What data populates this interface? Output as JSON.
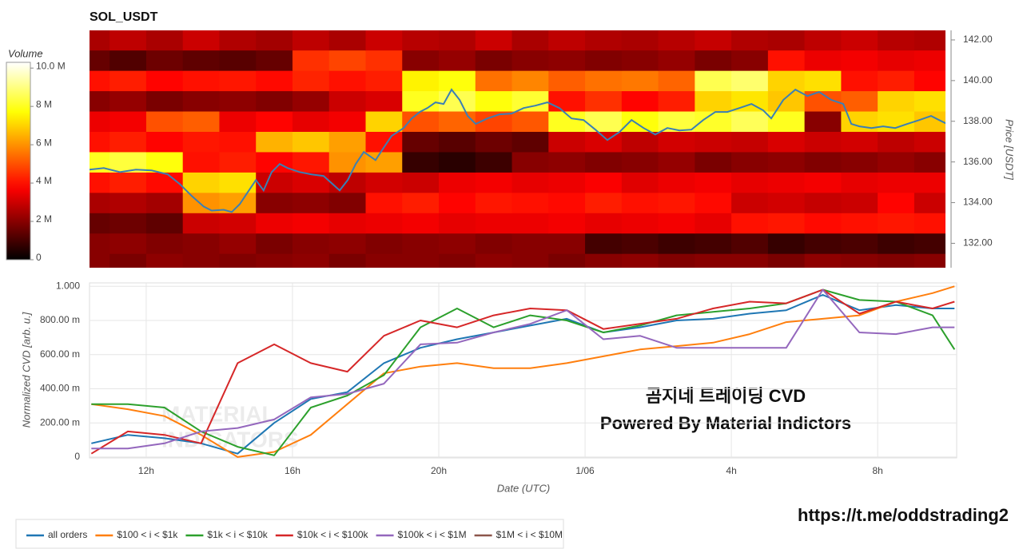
{
  "chart_data": [
    {
      "type": "heatmap",
      "title": "SOL_USDT",
      "colormap": "hot",
      "colorbar_title": "Volume",
      "zlim": [
        0,
        10.3
      ],
      "zticks": [
        0,
        {
          "value": 2,
          "label": "2 M"
        },
        {
          "value": 4,
          "label": "4 M"
        },
        {
          "value": 6,
          "label": "6 M"
        },
        {
          "value": 8,
          "label": "8 M"
        },
        {
          "value": 10,
          "label": "10.0 M"
        }
      ],
      "ylabel": "Price [USDT]",
      "ylim": [
        130.8,
        142.47
      ],
      "yticks": [
        {
          "value": 132,
          "label": "132.00"
        },
        {
          "value": 134,
          "label": "134.00"
        },
        {
          "value": 136,
          "label": "136.00"
        },
        {
          "value": 138,
          "label": "138.00"
        },
        {
          "value": 140,
          "label": "140.00"
        },
        {
          "value": 142,
          "label": "142.00"
        }
      ],
      "xlim": [
        10.45,
        34.16
      ],
      "x_bins": [
        10,
        11,
        12,
        13,
        14,
        15,
        16,
        17,
        18,
        19,
        20,
        21,
        22,
        23,
        24,
        25,
        26,
        27,
        28,
        29,
        30,
        31,
        32,
        33,
        34,
        35
      ],
      "y_bins": [
        130.5,
        131.5,
        132.5,
        133.5,
        134.5,
        135.5,
        136.5,
        137.5,
        138.5,
        139.5,
        140.5,
        141.5,
        142.5
      ],
      "z": [
        [
          2,
          1.8,
          2.1,
          2,
          1.9,
          2,
          2.1,
          1.8,
          2,
          2,
          1.9,
          2.1,
          2,
          1.8,
          2,
          2.1,
          1.9,
          2,
          2,
          1.8,
          2.1,
          2,
          1.9,
          2,
          2
        ],
        [
          2,
          2.1,
          1.9,
          2,
          2.2,
          1.8,
          2,
          2.1,
          1.9,
          2,
          2.1,
          1.9,
          2,
          2,
          1,
          1.1,
          0.9,
          1,
          1.2,
          0.8,
          1,
          1.1,
          0.9,
          1,
          1
        ],
        [
          1.5,
          1.6,
          1.4,
          3,
          3.1,
          3.5,
          3.6,
          3.4,
          3.5,
          3.6,
          3.4,
          3.5,
          3.5,
          3.6,
          3.4,
          3.5,
          3.6,
          3.4,
          4,
          4.1,
          3.9,
          4,
          4.1,
          4,
          4
        ],
        [
          2.5,
          2.6,
          2.4,
          6,
          6.2,
          2,
          2.1,
          1.9,
          4,
          4.2,
          3.8,
          4.1,
          4,
          3.9,
          4.2,
          4,
          4.1,
          3.9,
          3,
          3.1,
          2.9,
          3,
          3.8,
          3,
          3
        ],
        [
          4,
          4.2,
          3.9,
          7,
          7.2,
          3,
          3.2,
          2.8,
          3.1,
          3,
          3.5,
          3.6,
          3.4,
          3.5,
          3.7,
          3.3,
          3.5,
          3.6,
          3.4,
          3.5,
          3.6,
          3.4,
          3.5,
          3.5,
          3.5
        ],
        [
          8,
          8.3,
          7.8,
          4,
          4.2,
          3.8,
          4.1,
          6,
          6.2,
          0.8,
          0.6,
          0.9,
          2,
          2.1,
          1.9,
          2,
          2.2,
          1.8,
          2,
          2.1,
          1.9,
          2,
          2.2,
          2,
          2
        ],
        [
          4,
          4.2,
          3.8,
          4.1,
          4,
          6.5,
          6.8,
          6.2,
          4,
          1.5,
          1.3,
          1.6,
          1.4,
          3,
          3.2,
          2.8,
          3.1,
          3,
          2.9,
          3.2,
          3,
          3.1,
          2.8,
          3,
          3
        ],
        [
          3.5,
          3.6,
          5,
          5.2,
          3.5,
          3.8,
          3.4,
          3.6,
          7,
          5,
          5.3,
          4.8,
          5.1,
          8,
          8.5,
          7.8,
          8.3,
          8.1,
          8.6,
          8,
          2,
          7,
          7.2,
          6.8,
          7
        ],
        [
          2,
          2.2,
          1.8,
          2,
          2.1,
          1.9,
          2.2,
          3,
          3.2,
          8,
          8.5,
          7.8,
          8.2,
          4,
          4.5,
          3.8,
          4.2,
          7,
          7.3,
          6.8,
          5,
          5.2,
          7,
          7.2,
          6
        ],
        [
          4,
          4.2,
          3.8,
          4,
          4.1,
          3.9,
          4.3,
          4,
          4.2,
          7.5,
          7.8,
          5.5,
          5.8,
          5.2,
          5.5,
          5.6,
          5.3,
          8.5,
          8.8,
          7,
          7.2,
          4,
          4.2,
          3.8,
          4
        ],
        [
          1.5,
          1.2,
          1.6,
          1.4,
          1.3,
          1.5,
          4.5,
          4.8,
          4.5,
          2,
          2.2,
          1.8,
          2,
          2.1,
          1.9,
          2,
          2.2,
          1.8,
          2,
          4,
          3.5,
          3.6,
          3.4,
          3.5,
          3.5
        ],
        [
          2.5,
          2.8,
          2.5,
          3,
          2.6,
          2.4,
          2.8,
          2.5,
          3,
          2.7,
          2.6,
          3,
          2.5,
          2.8,
          2.6,
          2.5,
          2.7,
          2.9,
          2.6,
          2.5,
          2.8,
          3,
          2.7,
          2.6,
          2.6
        ]
      ],
      "price_line": {
        "color": "#3a7fb5",
        "x": [
          10.45,
          10.84,
          11.28,
          11.72,
          12.15,
          12.59,
          12.92,
          13.25,
          13.57,
          13.79,
          14.12,
          14.34,
          14.56,
          14.78,
          15.0,
          15.21,
          15.43,
          15.65,
          15.87,
          16.2,
          16.52,
          16.85,
          17.29,
          17.51,
          17.73,
          17.95,
          18.27,
          18.49,
          18.71,
          19.04,
          19.26,
          19.48,
          19.69,
          19.91,
          20.13,
          20.35,
          20.57,
          20.79,
          21.01,
          21.33,
          21.66,
          21.99,
          22.32,
          22.64,
          22.97,
          23.3,
          23.63,
          23.96,
          24.28,
          24.61,
          24.94,
          25.27,
          25.6,
          25.92,
          26.25,
          26.58,
          26.91,
          27.23,
          27.56,
          27.89,
          28.22,
          28.55,
          28.87,
          29.09,
          29.42,
          29.75,
          30.08,
          30.4,
          30.73,
          31.06,
          31.28,
          31.5,
          31.83,
          32.15,
          32.48,
          32.81,
          33.14,
          33.46,
          33.68,
          33.9,
          34.16
        ],
        "values": [
          135.62,
          135.7,
          135.5,
          135.62,
          135.58,
          135.39,
          134.91,
          134.32,
          133.81,
          133.61,
          133.65,
          133.54,
          133.93,
          134.52,
          135.11,
          134.6,
          135.5,
          135.9,
          135.7,
          135.5,
          135.39,
          135.31,
          134.6,
          135.11,
          135.9,
          136.49,
          136.09,
          136.69,
          137.28,
          137.67,
          138.14,
          138.46,
          138.65,
          138.93,
          138.85,
          139.56,
          139.05,
          138.26,
          137.87,
          138.14,
          138.34,
          138.38,
          138.65,
          138.77,
          138.93,
          138.65,
          138.14,
          138.06,
          137.59,
          137.08,
          137.47,
          138.06,
          137.67,
          137.35,
          137.67,
          137.55,
          137.59,
          138.06,
          138.46,
          138.46,
          138.65,
          138.85,
          138.54,
          138.14,
          139.05,
          139.56,
          139.24,
          139.44,
          139.05,
          138.85,
          137.87,
          137.75,
          137.67,
          137.75,
          137.67,
          137.87,
          138.06,
          138.26,
          138.06,
          137.87,
          137.98
        ]
      }
    },
    {
      "type": "line",
      "xlabel": "Date (UTC)",
      "ylabel": "Normalized CVD [arb. u.]",
      "grid": true,
      "xlim": [
        10.45,
        34.16
      ],
      "xticks": [
        {
          "value": 12,
          "label": "12h"
        },
        {
          "value": 16,
          "label": "16h"
        },
        {
          "value": 20,
          "label": "20h"
        },
        {
          "value": 24,
          "label": "1/06"
        },
        {
          "value": 28,
          "label": "4h"
        },
        {
          "value": 32,
          "label": "8h"
        }
      ],
      "ylim": [
        -0.005,
        1.02
      ],
      "yticks": [
        0,
        {
          "value": 0.2,
          "label": "200.00 m"
        },
        {
          "value": 0.4,
          "label": "400.00 m"
        },
        {
          "value": 0.6,
          "label": "600.00 m"
        },
        {
          "value": 0.8,
          "label": "800.00 m"
        },
        {
          "value": 1,
          "label": "1.000"
        }
      ],
      "x": [
        10.5,
        11.5,
        12.5,
        13.5,
        14.5,
        15.5,
        16.5,
        17.5,
        18.5,
        19.5,
        20.5,
        21.5,
        22.5,
        23.5,
        24.5,
        25.5,
        26.5,
        27.5,
        28.5,
        29.5,
        30.5,
        31.5,
        32.5,
        33.5,
        34.1
      ],
      "series": [
        {
          "name": "all orders",
          "color": "#1f77b4",
          "values": [
            0.08,
            0.13,
            0.11,
            0.08,
            0.02,
            0.2,
            0.34,
            0.38,
            0.55,
            0.64,
            0.69,
            0.73,
            0.77,
            0.81,
            0.73,
            0.76,
            0.8,
            0.81,
            0.84,
            0.86,
            0.95,
            0.86,
            0.89,
            0.87,
            0.87
          ]
        },
        {
          "name": "$100 < i < $1k",
          "color": "#ff7f0e",
          "values": [
            0.31,
            0.28,
            0.24,
            0.13,
            0,
            0.03,
            0.13,
            0.31,
            0.49,
            0.53,
            0.55,
            0.52,
            0.52,
            0.55,
            0.59,
            0.63,
            0.65,
            0.67,
            0.72,
            0.79,
            0.81,
            0.83,
            0.91,
            0.96,
            1.0
          ]
        },
        {
          "name": "$1k < i < $10k",
          "color": "#2ca02c",
          "values": [
            0.31,
            0.31,
            0.29,
            0.15,
            0.06,
            0.01,
            0.29,
            0.36,
            0.48,
            0.76,
            0.87,
            0.76,
            0.83,
            0.8,
            0.73,
            0.77,
            0.83,
            0.85,
            0.87,
            0.9,
            0.98,
            0.92,
            0.91,
            0.83,
            0.63
          ]
        },
        {
          "name": "$10k < i < $100k",
          "color": "#d62728",
          "values": [
            0.02,
            0.15,
            0.13,
            0.08,
            0.55,
            0.66,
            0.55,
            0.5,
            0.71,
            0.8,
            0.76,
            0.83,
            0.87,
            0.86,
            0.75,
            0.78,
            0.81,
            0.87,
            0.91,
            0.9,
            0.98,
            0.84,
            0.91,
            0.87,
            0.91
          ]
        },
        {
          "name": "$100k < i < $1M",
          "color": "#9467bd",
          "values": [
            0.05,
            0.05,
            0.08,
            0.15,
            0.17,
            0.22,
            0.35,
            0.37,
            0.43,
            0.66,
            0.67,
            0.73,
            0.78,
            0.86,
            0.69,
            0.71,
            0.64,
            0.64,
            0.64,
            0.64,
            0.98,
            0.73,
            0.72,
            0.76,
            0.76
          ]
        },
        {
          "name": "$1M < i < $10M",
          "color": "#8c564b",
          "values": [
            null,
            null,
            null,
            null,
            null,
            null,
            null,
            null,
            null,
            null,
            null,
            null,
            null,
            null,
            null,
            null,
            null,
            null,
            null,
            null,
            null,
            null,
            null,
            null,
            null
          ]
        }
      ],
      "annotations": [
        "곰지네 트레이딩 CVD",
        "Powered By Material Indictors"
      ],
      "watermark": [
        "MATERIAL",
        "INDICATORS"
      ]
    }
  ],
  "footer_link": "https://t.me/oddstrading2"
}
